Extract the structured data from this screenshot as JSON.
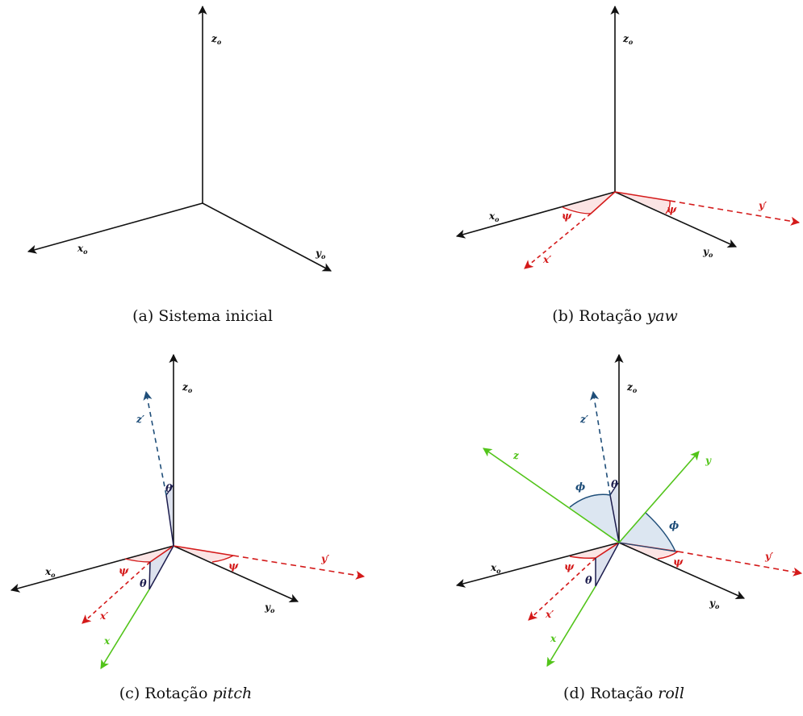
{
  "colors": {
    "black": "#111111",
    "red": "#d41a1a",
    "blue": "#1f4e79",
    "green": "#52c41a",
    "navy": "#1c1c4d",
    "red_fill": "#fbe4e4",
    "blue_fill": "#dce6f1"
  },
  "axes": {
    "x0": "x",
    "y0": "y",
    "z0": "z",
    "origin_sub": "o",
    "x_prime": "x′",
    "y_prime": "y′",
    "z_prime": "z′",
    "x": "x",
    "y": "y",
    "z": "z"
  },
  "angles": {
    "psi": "ψ",
    "theta": "θ",
    "phi": "ϕ"
  },
  "panels": [
    {
      "id": "a",
      "caption_prefix": "(a)",
      "caption_text": "Sistema inicial",
      "caption_em": ""
    },
    {
      "id": "b",
      "caption_prefix": "(b)",
      "caption_text": "Rotação",
      "caption_em": "yaw"
    },
    {
      "id": "c",
      "caption_prefix": "(c)",
      "caption_text": "Rotação",
      "caption_em": "pitch"
    },
    {
      "id": "d",
      "caption_prefix": "(d)",
      "caption_text": "Rotação",
      "caption_em": "roll"
    }
  ]
}
